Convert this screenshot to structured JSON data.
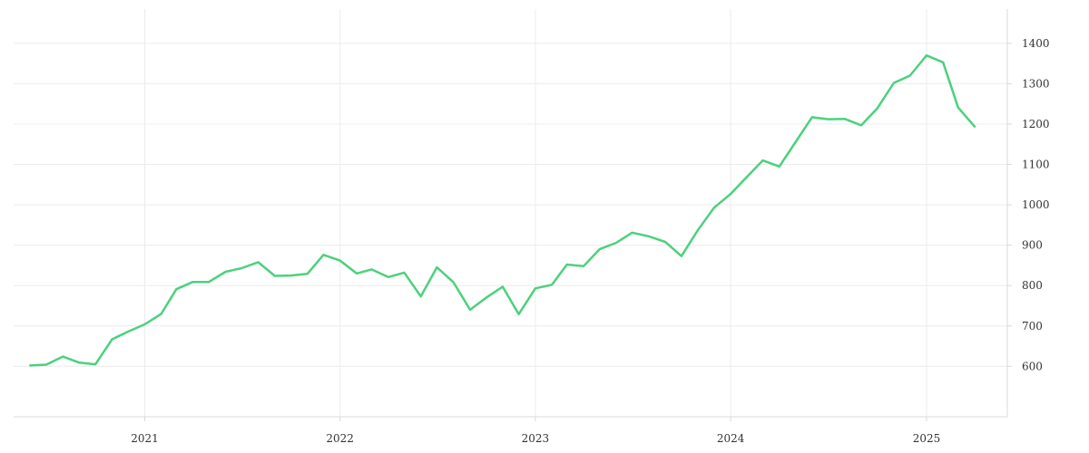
{
  "chart_data": {
    "type": "line",
    "title": "",
    "xlabel": "",
    "ylabel": "",
    "x_ticks": [
      "2021",
      "2022",
      "2023",
      "2024",
      "2025"
    ],
    "y_ticks": [
      600,
      700,
      800,
      900,
      1000,
      1100,
      1200,
      1300,
      1400
    ],
    "ylim": [
      475,
      1485
    ],
    "xlim": [
      "2020-05-01",
      "2025-06-01"
    ],
    "grid": true,
    "y_axis_position": "right",
    "series": [
      {
        "color": "#4cd17c",
        "x": [
          "2020-06",
          "2020-07",
          "2020-08",
          "2020-09",
          "2020-10",
          "2020-11",
          "2020-12",
          "2021-01",
          "2021-02",
          "2021-03",
          "2021-04",
          "2021-05",
          "2021-06",
          "2021-07",
          "2021-08",
          "2021-09",
          "2021-10",
          "2021-11",
          "2021-12",
          "2022-01",
          "2022-02",
          "2022-03",
          "2022-04",
          "2022-05",
          "2022-06",
          "2022-07",
          "2022-08",
          "2022-09",
          "2022-10",
          "2022-11",
          "2022-12",
          "2023-01",
          "2023-02",
          "2023-03",
          "2023-04",
          "2023-05",
          "2023-06",
          "2023-07",
          "2023-08",
          "2023-09",
          "2023-10",
          "2023-11",
          "2023-12",
          "2024-01",
          "2024-02",
          "2024-03",
          "2024-04",
          "2024-05",
          "2024-06",
          "2024-07",
          "2024-08",
          "2024-09",
          "2024-10",
          "2024-11",
          "2024-12",
          "2025-01",
          "2025-02",
          "2025-03",
          "2025-04"
        ],
        "values": [
          602,
          604,
          624,
          609,
          605,
          667,
          686,
          704,
          730,
          791,
          809,
          809,
          834,
          843,
          858,
          824,
          825,
          829,
          876,
          862,
          830,
          840,
          821,
          832,
          773,
          845,
          808,
          740,
          770,
          797,
          729,
          793,
          802,
          852,
          848,
          890,
          906,
          931,
          922,
          908,
          873,
          938,
          993,
          1027,
          1070,
          1110,
          1095,
          1155,
          1217,
          1212,
          1213,
          1197,
          1239,
          1302,
          1320,
          1370,
          1353,
          1241,
          1194
        ]
      }
    ]
  }
}
